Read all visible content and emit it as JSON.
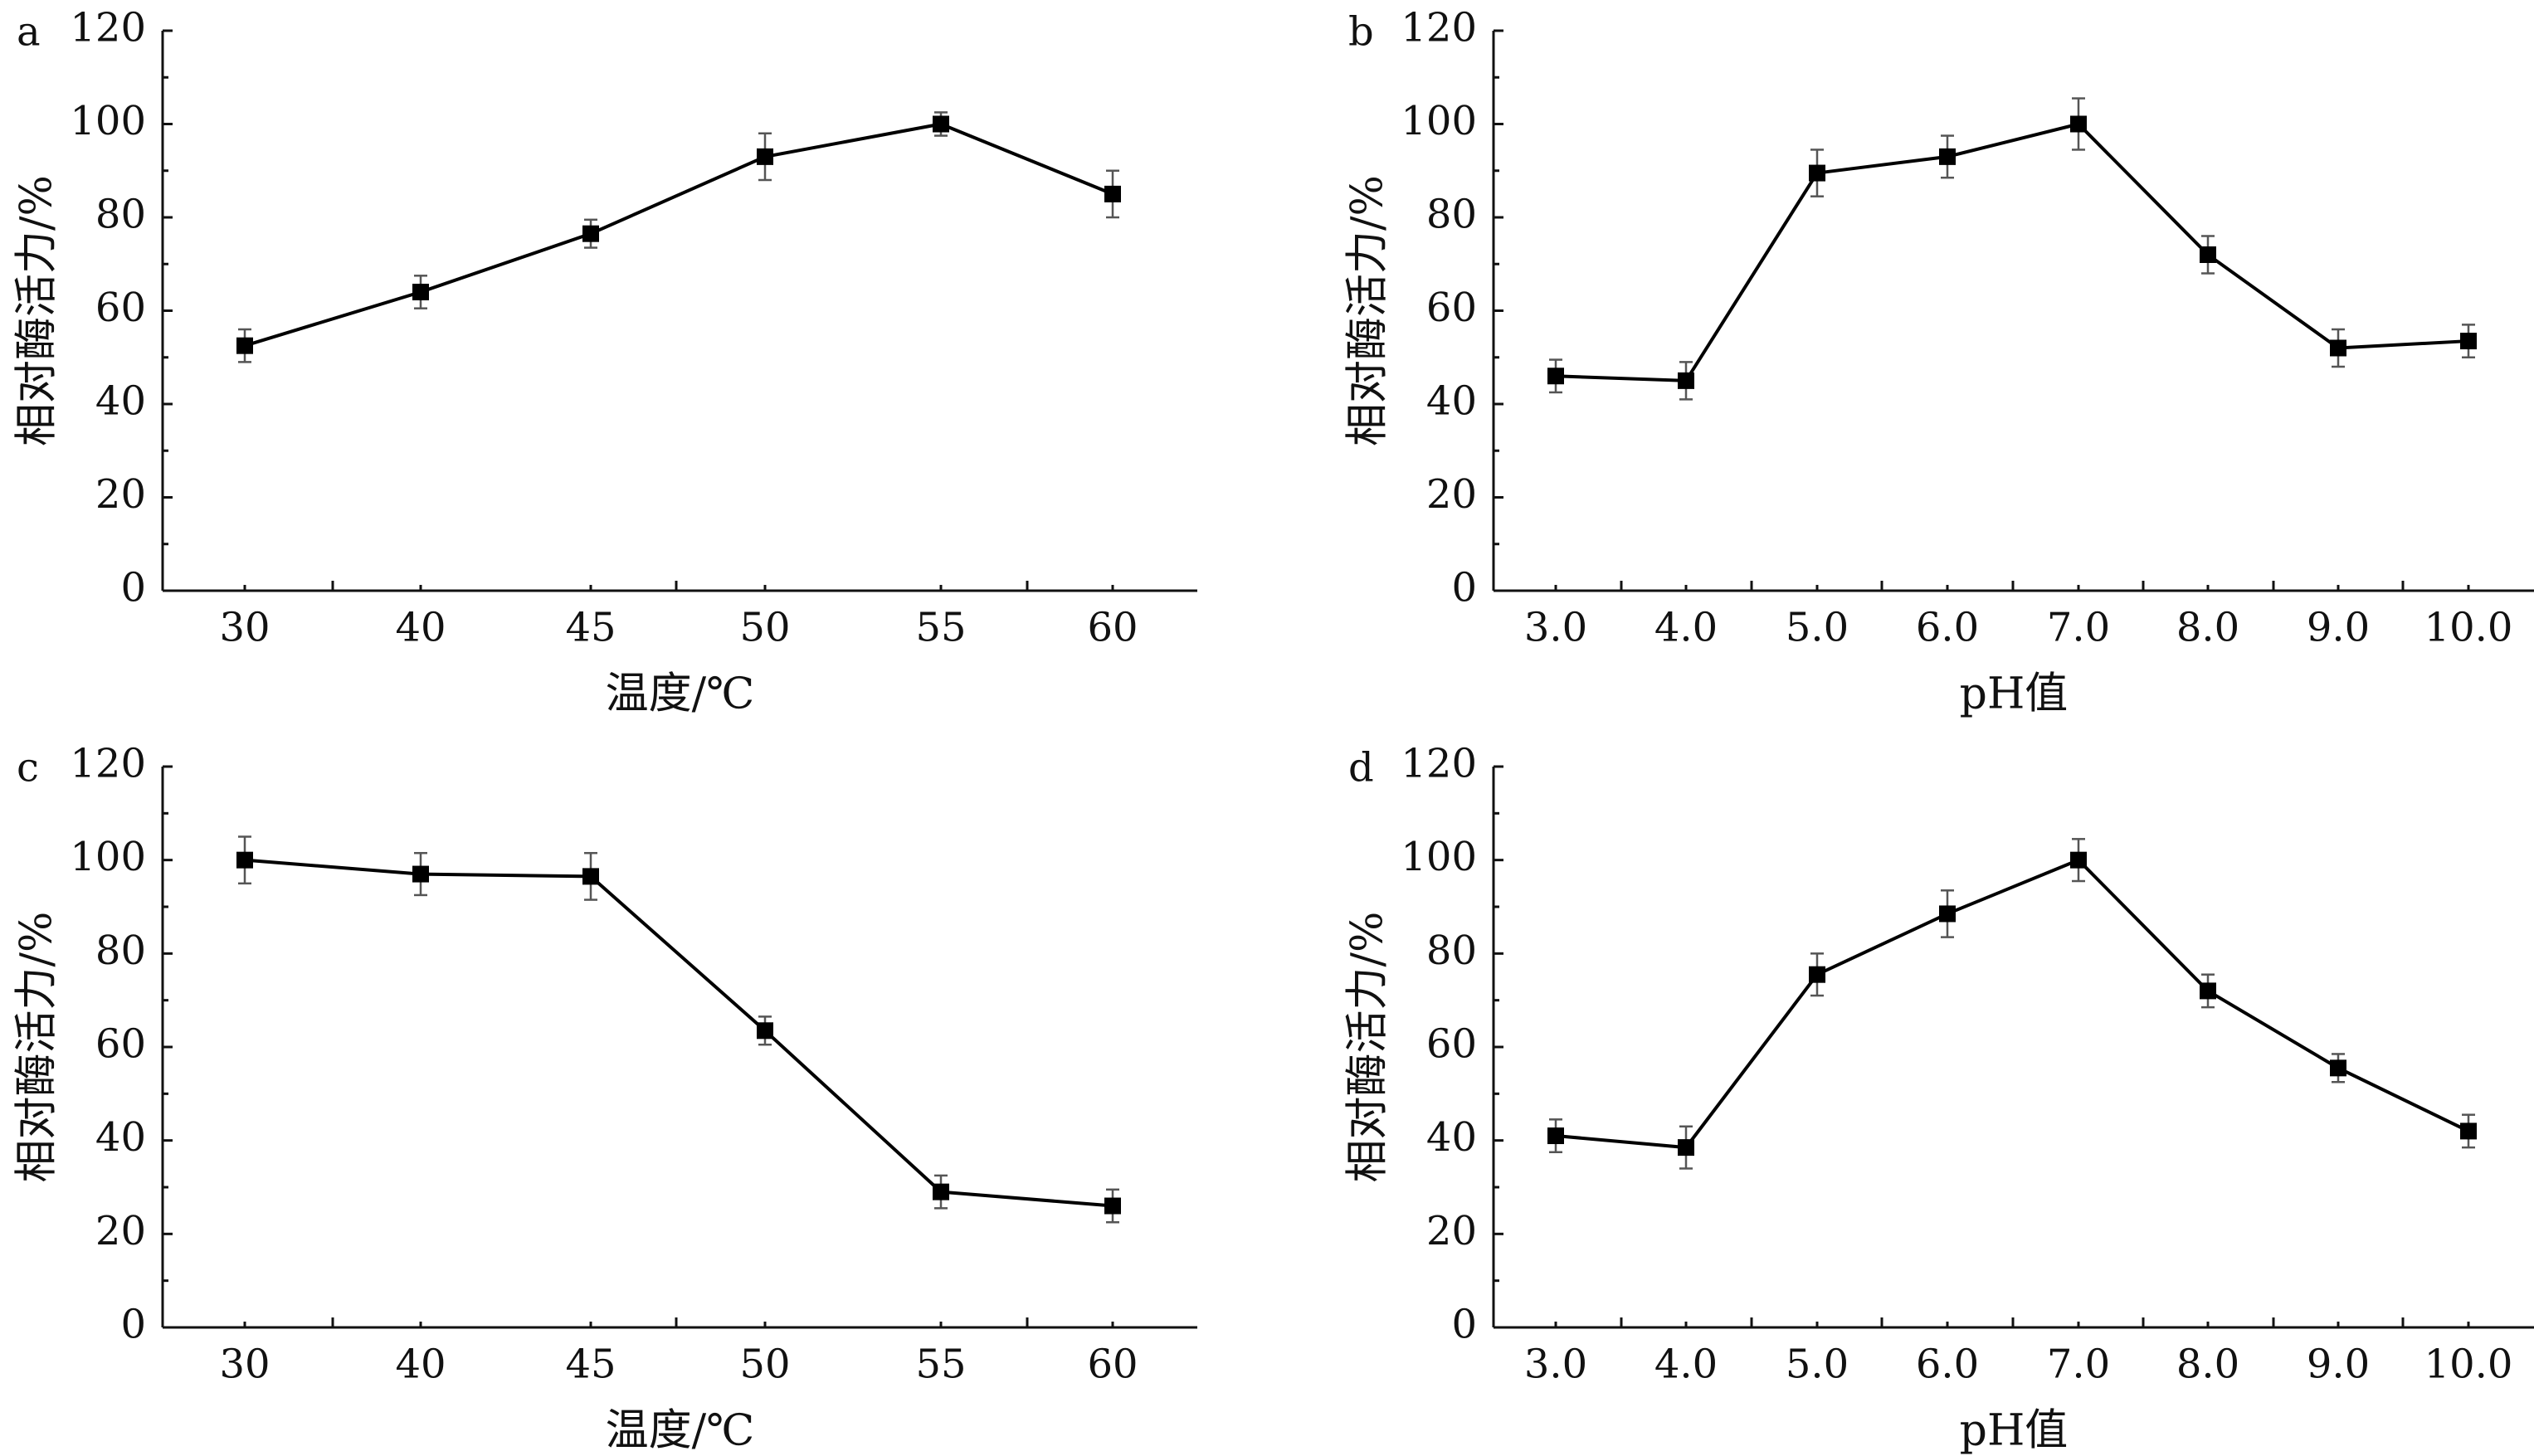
{
  "chart_data": [
    {
      "panel": "a",
      "type": "line",
      "categories": [
        "30",
        "40",
        "45",
        "50",
        "55",
        "60"
      ],
      "series": [
        {
          "values": [
            52.5,
            64,
            76.5,
            93,
            100,
            85
          ],
          "errors": [
            3.5,
            3.5,
            3,
            5,
            2.5,
            5
          ]
        }
      ],
      "xlabel": "温度/℃",
      "ylabel": "相对酶活力/%",
      "ylim": [
        0,
        120
      ],
      "yticks": [
        "0",
        "20",
        "40",
        "60",
        "80",
        "100",
        "120"
      ],
      "grid": false,
      "color": "#000000"
    },
    {
      "panel": "b",
      "type": "line",
      "categories": [
        "3.0",
        "4.0",
        "5.0",
        "6.0",
        "7.0",
        "8.0",
        "9.0",
        "10.0"
      ],
      "series": [
        {
          "values": [
            46,
            45,
            89.5,
            93,
            100,
            72,
            52,
            53.5
          ],
          "errors": [
            3.5,
            4,
            5,
            4.5,
            5.5,
            4,
            4,
            3.5
          ]
        }
      ],
      "xlabel": "pH值",
      "ylabel": "相对酶活力/%",
      "ylim": [
        0,
        120
      ],
      "yticks": [
        "0",
        "20",
        "40",
        "60",
        "80",
        "100",
        "120"
      ],
      "grid": false,
      "color": "#000000"
    },
    {
      "panel": "c",
      "type": "line",
      "categories": [
        "30",
        "40",
        "45",
        "50",
        "55",
        "60"
      ],
      "series": [
        {
          "values": [
            100,
            97,
            96.5,
            63.5,
            29,
            26
          ],
          "errors": [
            5,
            4.5,
            5,
            3,
            3.5,
            3.5
          ]
        }
      ],
      "xlabel": "温度/℃",
      "ylabel": "相对酶活力/%",
      "ylim": [
        0,
        120
      ],
      "yticks": [
        "0",
        "20",
        "40",
        "60",
        "80",
        "100",
        "120"
      ],
      "grid": false,
      "color": "#000000"
    },
    {
      "panel": "d",
      "type": "line",
      "categories": [
        "3.0",
        "4.0",
        "5.0",
        "6.0",
        "7.0",
        "8.0",
        "9.0",
        "10.0"
      ],
      "series": [
        {
          "values": [
            41,
            38.5,
            75.5,
            88.5,
            100,
            72,
            55.5,
            42
          ],
          "errors": [
            3.5,
            4.5,
            4.5,
            5,
            4.5,
            3.5,
            3,
            3.5
          ]
        }
      ],
      "xlabel": "pH值",
      "ylabel": "相对酶活力/%",
      "ylim": [
        0,
        120
      ],
      "yticks": [
        "0",
        "20",
        "40",
        "60",
        "80",
        "100",
        "120"
      ],
      "grid": false,
      "color": "#000000"
    }
  ]
}
